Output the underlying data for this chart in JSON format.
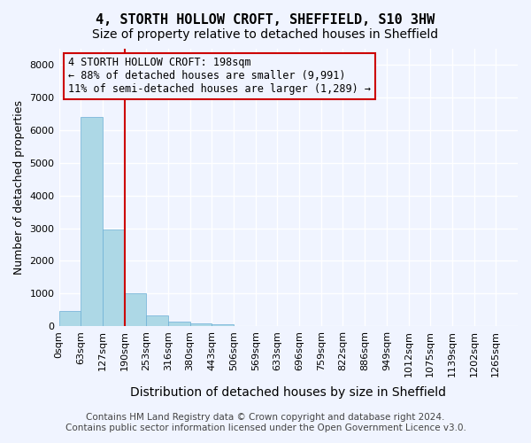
{
  "title": "4, STORTH HOLLOW CROFT, SHEFFIELD, S10 3HW",
  "subtitle": "Size of property relative to detached houses in Sheffield",
  "xlabel": "Distribution of detached houses by size in Sheffield",
  "ylabel": "Number of detached properties",
  "bar_color": "#add8e6",
  "bar_edge_color": "#6baed6",
  "vline_color": "#cc0000",
  "vline_x": 3,
  "annotation_text": "4 STORTH HOLLOW CROFT: 198sqm\n← 88% of detached houses are smaller (9,991)\n11% of semi-detached houses are larger (1,289) →",
  "annotation_box_color": "#cc0000",
  "background_color": "#f0f4ff",
  "grid_color": "#ffffff",
  "categories": [
    "0sqm",
    "63sqm",
    "127sqm",
    "190sqm",
    "253sqm",
    "316sqm",
    "380sqm",
    "443sqm",
    "506sqm",
    "569sqm",
    "633sqm",
    "696sqm",
    "759sqm",
    "822sqm",
    "886sqm",
    "949sqm",
    "1012sqm",
    "1075sqm",
    "1139sqm",
    "1202sqm",
    "1265sqm"
  ],
  "values": [
    450,
    6400,
    2950,
    1000,
    330,
    130,
    90,
    50,
    0,
    0,
    0,
    0,
    0,
    0,
    0,
    0,
    0,
    0,
    0,
    0,
    0
  ],
  "ylim": [
    0,
    8500
  ],
  "yticks": [
    0,
    1000,
    2000,
    3000,
    4000,
    5000,
    6000,
    7000,
    8000
  ],
  "footer_line1": "Contains HM Land Registry data © Crown copyright and database right 2024.",
  "footer_line2": "Contains public sector information licensed under the Open Government Licence v3.0.",
  "title_fontsize": 11,
  "subtitle_fontsize": 10,
  "xlabel_fontsize": 10,
  "ylabel_fontsize": 9,
  "tick_fontsize": 8,
  "footer_fontsize": 7.5
}
